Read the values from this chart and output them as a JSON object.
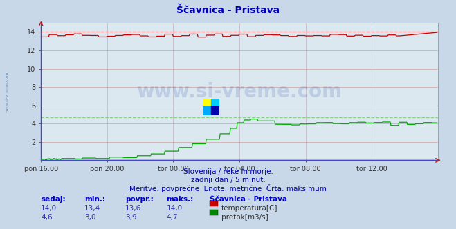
{
  "title": "Ščavnica - Pristava",
  "background_color": "#c8d8e8",
  "plot_bg_color": "#dce8f0",
  "grid_color_h": "#d0a0a0",
  "grid_color_v": "#c0b0c0",
  "xlabel_ticks": [
    "pon 16:00",
    "pon 20:00",
    "tor 00:00",
    "tor 04:00",
    "tor 08:00",
    "tor 12:00"
  ],
  "xtick_positions": [
    0,
    96,
    192,
    288,
    384,
    480
  ],
  "total_points": 576,
  "ylim": [
    0,
    15
  ],
  "yticks": [
    2,
    4,
    6,
    8,
    10,
    12,
    14
  ],
  "temp_color": "#cc0000",
  "temp_max_color": "#ff8888",
  "flow_color": "#00aa00",
  "flow_max_color": "#88cc88",
  "height_color": "#0000ff",
  "temp_max": 14.0,
  "flow_max": 4.7,
  "watermark": "www.si-vreme.com",
  "subtitle1": "Slovenija / reke in morje.",
  "subtitle2": "zadnji dan / 5 minut.",
  "subtitle3": "Meritve: povprečne  Enote: metrične  Črta: maksimum",
  "legend_title": "Ščavnica - Pristava",
  "legend_temp_label": "temperatura[C]",
  "legend_flow_label": "pretok[m3/s]",
  "legend_temp_color": "#cc0000",
  "legend_flow_color": "#008800",
  "stats_headers": [
    "sedaj:",
    "min.:",
    "povpr.:",
    "maks.:"
  ],
  "stats_temp": [
    "14,0",
    "13,4",
    "13,6",
    "14,0"
  ],
  "stats_flow": [
    "4,6",
    "3,0",
    "3,9",
    "4,7"
  ],
  "side_label": "www.si-vreme.com"
}
